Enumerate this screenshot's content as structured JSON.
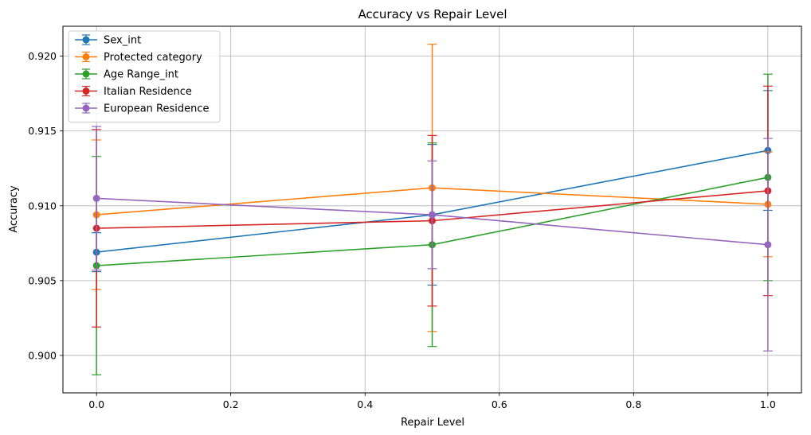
{
  "chart_data": {
    "type": "line",
    "title": "Accuracy vs Repair Level",
    "xlabel": "Repair Level",
    "ylabel": "Accuracy",
    "x": [
      0.0,
      0.5,
      1.0
    ],
    "xlim": [
      -0.05,
      1.05
    ],
    "ylim": [
      0.8975,
      0.922
    ],
    "xticks": [
      0.0,
      0.2,
      0.4,
      0.6,
      0.8,
      1.0
    ],
    "xtick_labels": [
      "0.0",
      "0.2",
      "0.4",
      "0.6",
      "0.8",
      "1.0"
    ],
    "yticks": [
      0.9,
      0.905,
      0.91,
      0.915,
      0.92
    ],
    "ytick_labels": [
      "0.900",
      "0.905",
      "0.910",
      "0.915",
      "0.920"
    ],
    "grid": true,
    "legend_position": "top-left",
    "series": [
      {
        "name": "Sex_int",
        "color": "#1f77b4",
        "values": [
          0.9069,
          0.9094,
          0.9137
        ],
        "error": [
          0.0013,
          0.0047,
          0.004
        ]
      },
      {
        "name": "Protected category",
        "color": "#ff7f0e",
        "values": [
          0.9094,
          0.9112,
          0.9101
        ],
        "error": [
          0.005,
          0.0096,
          0.0035
        ]
      },
      {
        "name": "Age Range_int",
        "color": "#2ca02c",
        "values": [
          0.906,
          0.9074,
          0.9119
        ],
        "error": [
          0.0073,
          0.0068,
          0.0069
        ]
      },
      {
        "name": "Italian Residence",
        "color": "#d62728",
        "values": [
          0.9085,
          0.909,
          0.911
        ],
        "error": [
          0.0066,
          0.0057,
          0.007
        ]
      },
      {
        "name": "European Residence",
        "color": "#9467bd",
        "values": [
          0.9105,
          0.9094,
          0.9074
        ],
        "error": [
          0.0048,
          0.0036,
          0.0071
        ]
      }
    ]
  }
}
